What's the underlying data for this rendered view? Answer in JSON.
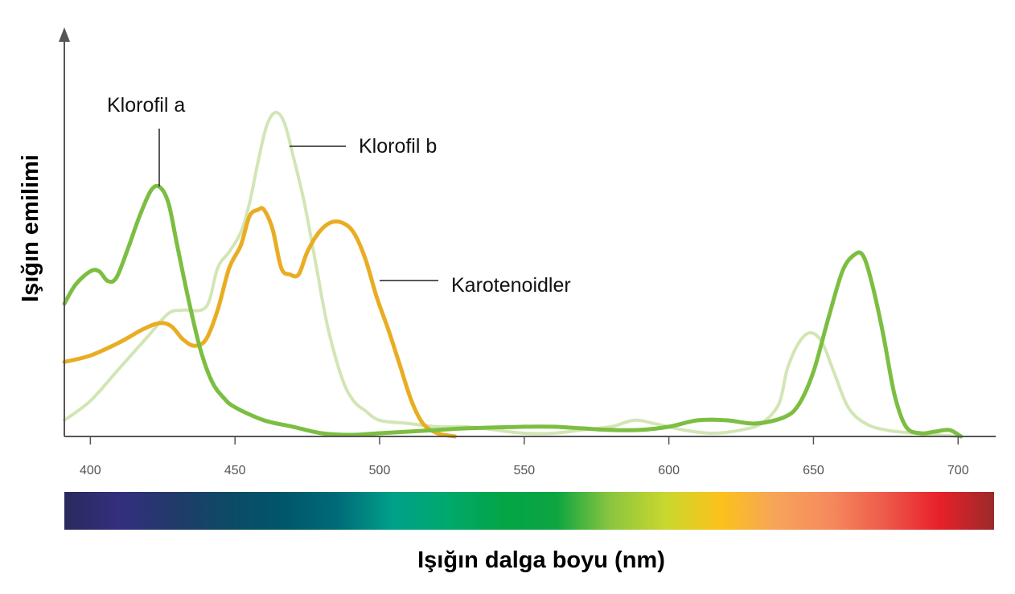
{
  "chart_data": {
    "type": "line",
    "ylabel": "Işığın emilimi",
    "xlabel": "Işığın dalga boyu (nm)",
    "xlim": [
      391,
      713
    ],
    "ylim": [
      0,
      100
    ],
    "x_ticks": [
      400,
      450,
      500,
      550,
      600,
      650,
      700
    ],
    "grid": false,
    "legend": "inline-labels",
    "spectrum_bar": true,
    "series": [
      {
        "name": "Klorofil b",
        "color": "#d2e6b5",
        "x": [
          391,
          400,
          410,
          420,
          427,
          432,
          440,
          444,
          448,
          452,
          455,
          458,
          461,
          464,
          467,
          470,
          474,
          478,
          482,
          487,
          491,
          495,
          500,
          510,
          520,
          530,
          540,
          550,
          560,
          570,
          580,
          588,
          595,
          605,
          615,
          625,
          632,
          638,
          641,
          645,
          649,
          653,
          657,
          662,
          668,
          675,
          685,
          700
        ],
        "values": [
          5,
          11,
          21,
          31,
          38,
          39,
          40,
          52,
          57,
          63,
          72,
          85,
          96,
          100,
          97,
          87,
          72,
          53,
          34,
          18,
          11,
          8,
          5,
          4,
          3,
          3,
          2,
          1,
          1,
          2,
          3,
          5,
          4,
          2,
          1,
          2,
          4,
          10,
          21,
          29,
          32,
          29,
          20,
          9,
          4,
          2,
          1,
          0
        ]
      },
      {
        "name": "Karotenoidler",
        "color": "#e9ad24",
        "x": [
          391,
          400,
          410,
          418,
          424,
          428,
          432,
          436,
          440,
          444,
          448,
          452,
          455,
          458,
          460,
          463,
          466,
          469,
          472,
          475,
          479,
          483,
          487,
          491,
          495,
          499,
          503,
          507,
          511,
          515,
          520,
          526
        ],
        "values": [
          23,
          25,
          29,
          33,
          35,
          34,
          30,
          28,
          30,
          39,
          52,
          59,
          68,
          70,
          70,
          64,
          52,
          50,
          50,
          57,
          63,
          66,
          66,
          63,
          55,
          43,
          33,
          22,
          11,
          4,
          1,
          0
        ]
      },
      {
        "name": "Klorofil a",
        "color": "#7cbe42",
        "x": [
          391,
          395,
          400,
          403,
          406,
          409,
          413,
          417,
          421,
          424,
          427,
          430,
          434,
          438,
          442,
          446,
          450,
          460,
          470,
          480,
          490,
          500,
          510,
          520,
          530,
          550,
          560,
          570,
          580,
          590,
          600,
          610,
          620,
          630,
          640,
          645,
          650,
          655,
          660,
          664,
          667,
          670,
          674,
          678,
          682,
          687,
          692,
          697,
          701
        ],
        "values": [
          41,
          47,
          51,
          51,
          48,
          49,
          58,
          68,
          76,
          77,
          72,
          59,
          42,
          27,
          17,
          12,
          9,
          5,
          3,
          1,
          0.5,
          1,
          1.5,
          2,
          2.5,
          3,
          3,
          2.5,
          2,
          2,
          3,
          5,
          5,
          4,
          6,
          10,
          20,
          36,
          51,
          56,
          56,
          48,
          32,
          13,
          3,
          1,
          1.5,
          2,
          0
        ]
      }
    ],
    "annotations": [
      {
        "series": "Klorofil a",
        "text": "Klorofil a"
      },
      {
        "series": "Klorofil b",
        "text": "Klorofil b"
      },
      {
        "series": "Karotenoidler",
        "text": "Karotenoidler"
      }
    ]
  },
  "spectrum_colors": [
    "#2a2a5c",
    "#332f7e",
    "#213a6a",
    "#0d4a66",
    "#00566b",
    "#006b78",
    "#00a08a",
    "#00a96d",
    "#02a546",
    "#0da540",
    "#8cc63f",
    "#c9d72e",
    "#fbc21a",
    "#f7a45a",
    "#f58a5e",
    "#ee5a4a",
    "#e8202a",
    "#9b2a2a"
  ]
}
